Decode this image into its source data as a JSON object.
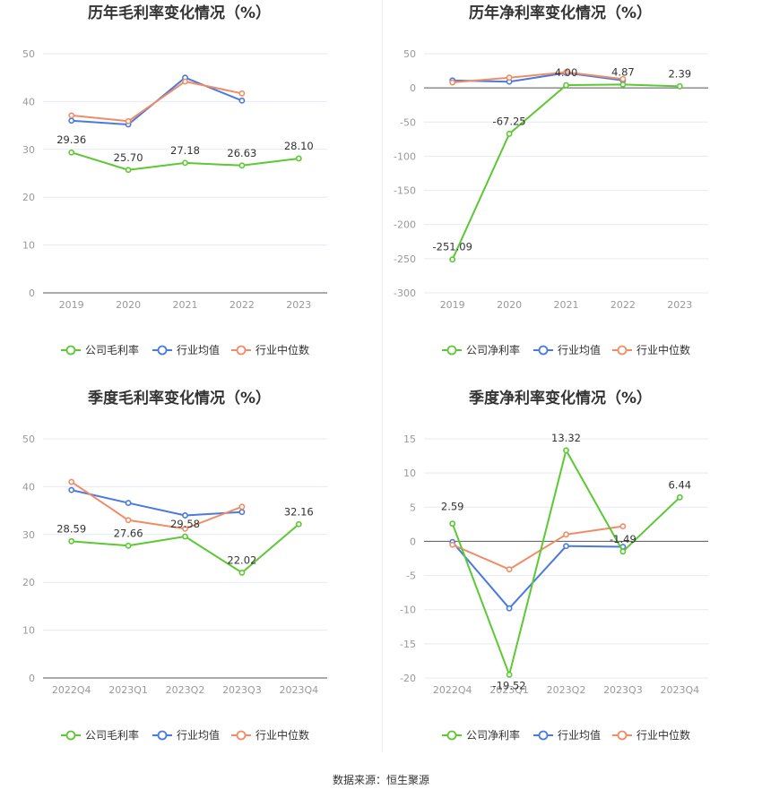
{
  "footer": {
    "source_text": "数据来源：恒生聚源"
  },
  "colors": {
    "company": "#5cc833",
    "industry_avg": "#4a7ae0",
    "industry_median": "#f08c66"
  },
  "chart_data": [
    {
      "type": "line",
      "title": "历年毛利率变化情况（%）",
      "categories": [
        "2019",
        "2020",
        "2021",
        "2022",
        "2023"
      ],
      "yticks": [
        "0",
        "10",
        "20",
        "30",
        "40",
        "50"
      ],
      "ylim": [
        0,
        50
      ],
      "series": [
        {
          "name": "公司毛利率",
          "color": "#5cc833",
          "values": [
            29.36,
            25.7,
            27.18,
            26.63,
            28.1
          ],
          "labels": [
            "29.36",
            "25.70",
            "27.18",
            "26.63",
            "28.10"
          ]
        },
        {
          "name": "行业均值",
          "color": "#4a7ae0",
          "values": [
            36,
            35.2,
            45,
            40.2,
            null
          ]
        },
        {
          "name": "行业中位数",
          "color": "#f08c66",
          "values": [
            37.1,
            35.9,
            44.2,
            41.7,
            null
          ]
        }
      ]
    },
    {
      "type": "line",
      "title": "历年净利率变化情况（%）",
      "categories": [
        "2019",
        "2020",
        "2021",
        "2022",
        "2023"
      ],
      "yticks": [
        "50",
        "0",
        "-50",
        "-100",
        "-150",
        "-200",
        "-250",
        "-300"
      ],
      "ylim": [
        -300,
        50
      ],
      "series": [
        {
          "name": "公司净利率",
          "color": "#5cc833",
          "values": [
            -251.09,
            -67.25,
            4.0,
            4.87,
            2.39
          ],
          "labels": [
            "-251.09",
            "-67.25",
            "4.00",
            "4.87",
            "2.39"
          ]
        },
        {
          "name": "行业均值",
          "color": "#4a7ae0",
          "values": [
            11,
            9,
            22,
            11,
            null
          ]
        },
        {
          "name": "行业中位数",
          "color": "#f08c66",
          "values": [
            8,
            15,
            23,
            13,
            null
          ]
        }
      ]
    },
    {
      "type": "line",
      "title": "季度毛利率变化情况（%）",
      "categories": [
        "2022Q4",
        "2023Q1",
        "2023Q2",
        "2023Q3",
        "2023Q4"
      ],
      "yticks": [
        "0",
        "10",
        "20",
        "30",
        "40",
        "50"
      ],
      "ylim": [
        0,
        50
      ],
      "series": [
        {
          "name": "公司毛利率",
          "color": "#5cc833",
          "values": [
            28.59,
            27.66,
            29.58,
            22.02,
            32.16
          ],
          "labels": [
            "28.59",
            "27.66",
            "29.58",
            "22.02",
            "32.16"
          ]
        },
        {
          "name": "行业均值",
          "color": "#4a7ae0",
          "values": [
            39.3,
            36.6,
            34.0,
            34.7,
            null
          ]
        },
        {
          "name": "行业中位数",
          "color": "#f08c66",
          "values": [
            41.0,
            33.0,
            31.2,
            35.8,
            null
          ]
        }
      ]
    },
    {
      "type": "line",
      "title": "季度净利率变化情况（%）",
      "categories": [
        "2022Q4",
        "2023Q1",
        "2023Q2",
        "2023Q3",
        "2023Q4"
      ],
      "yticks": [
        "15",
        "10",
        "5",
        "0",
        "-5",
        "-10",
        "-15",
        "-20"
      ],
      "ylim": [
        -20,
        15
      ],
      "series": [
        {
          "name": "公司净利率",
          "color": "#5cc833",
          "values": [
            2.59,
            -19.52,
            13.32,
            -1.49,
            6.44
          ],
          "labels": [
            "2.59",
            "-19.52",
            "13.32",
            "-1.49",
            "6.44"
          ]
        },
        {
          "name": "行业均值",
          "color": "#4a7ae0",
          "values": [
            -0.1,
            -9.8,
            -0.7,
            -0.8,
            null
          ]
        },
        {
          "name": "行业中位数",
          "color": "#f08c66",
          "values": [
            -0.5,
            -4.1,
            1.0,
            2.2,
            null
          ]
        }
      ]
    }
  ]
}
